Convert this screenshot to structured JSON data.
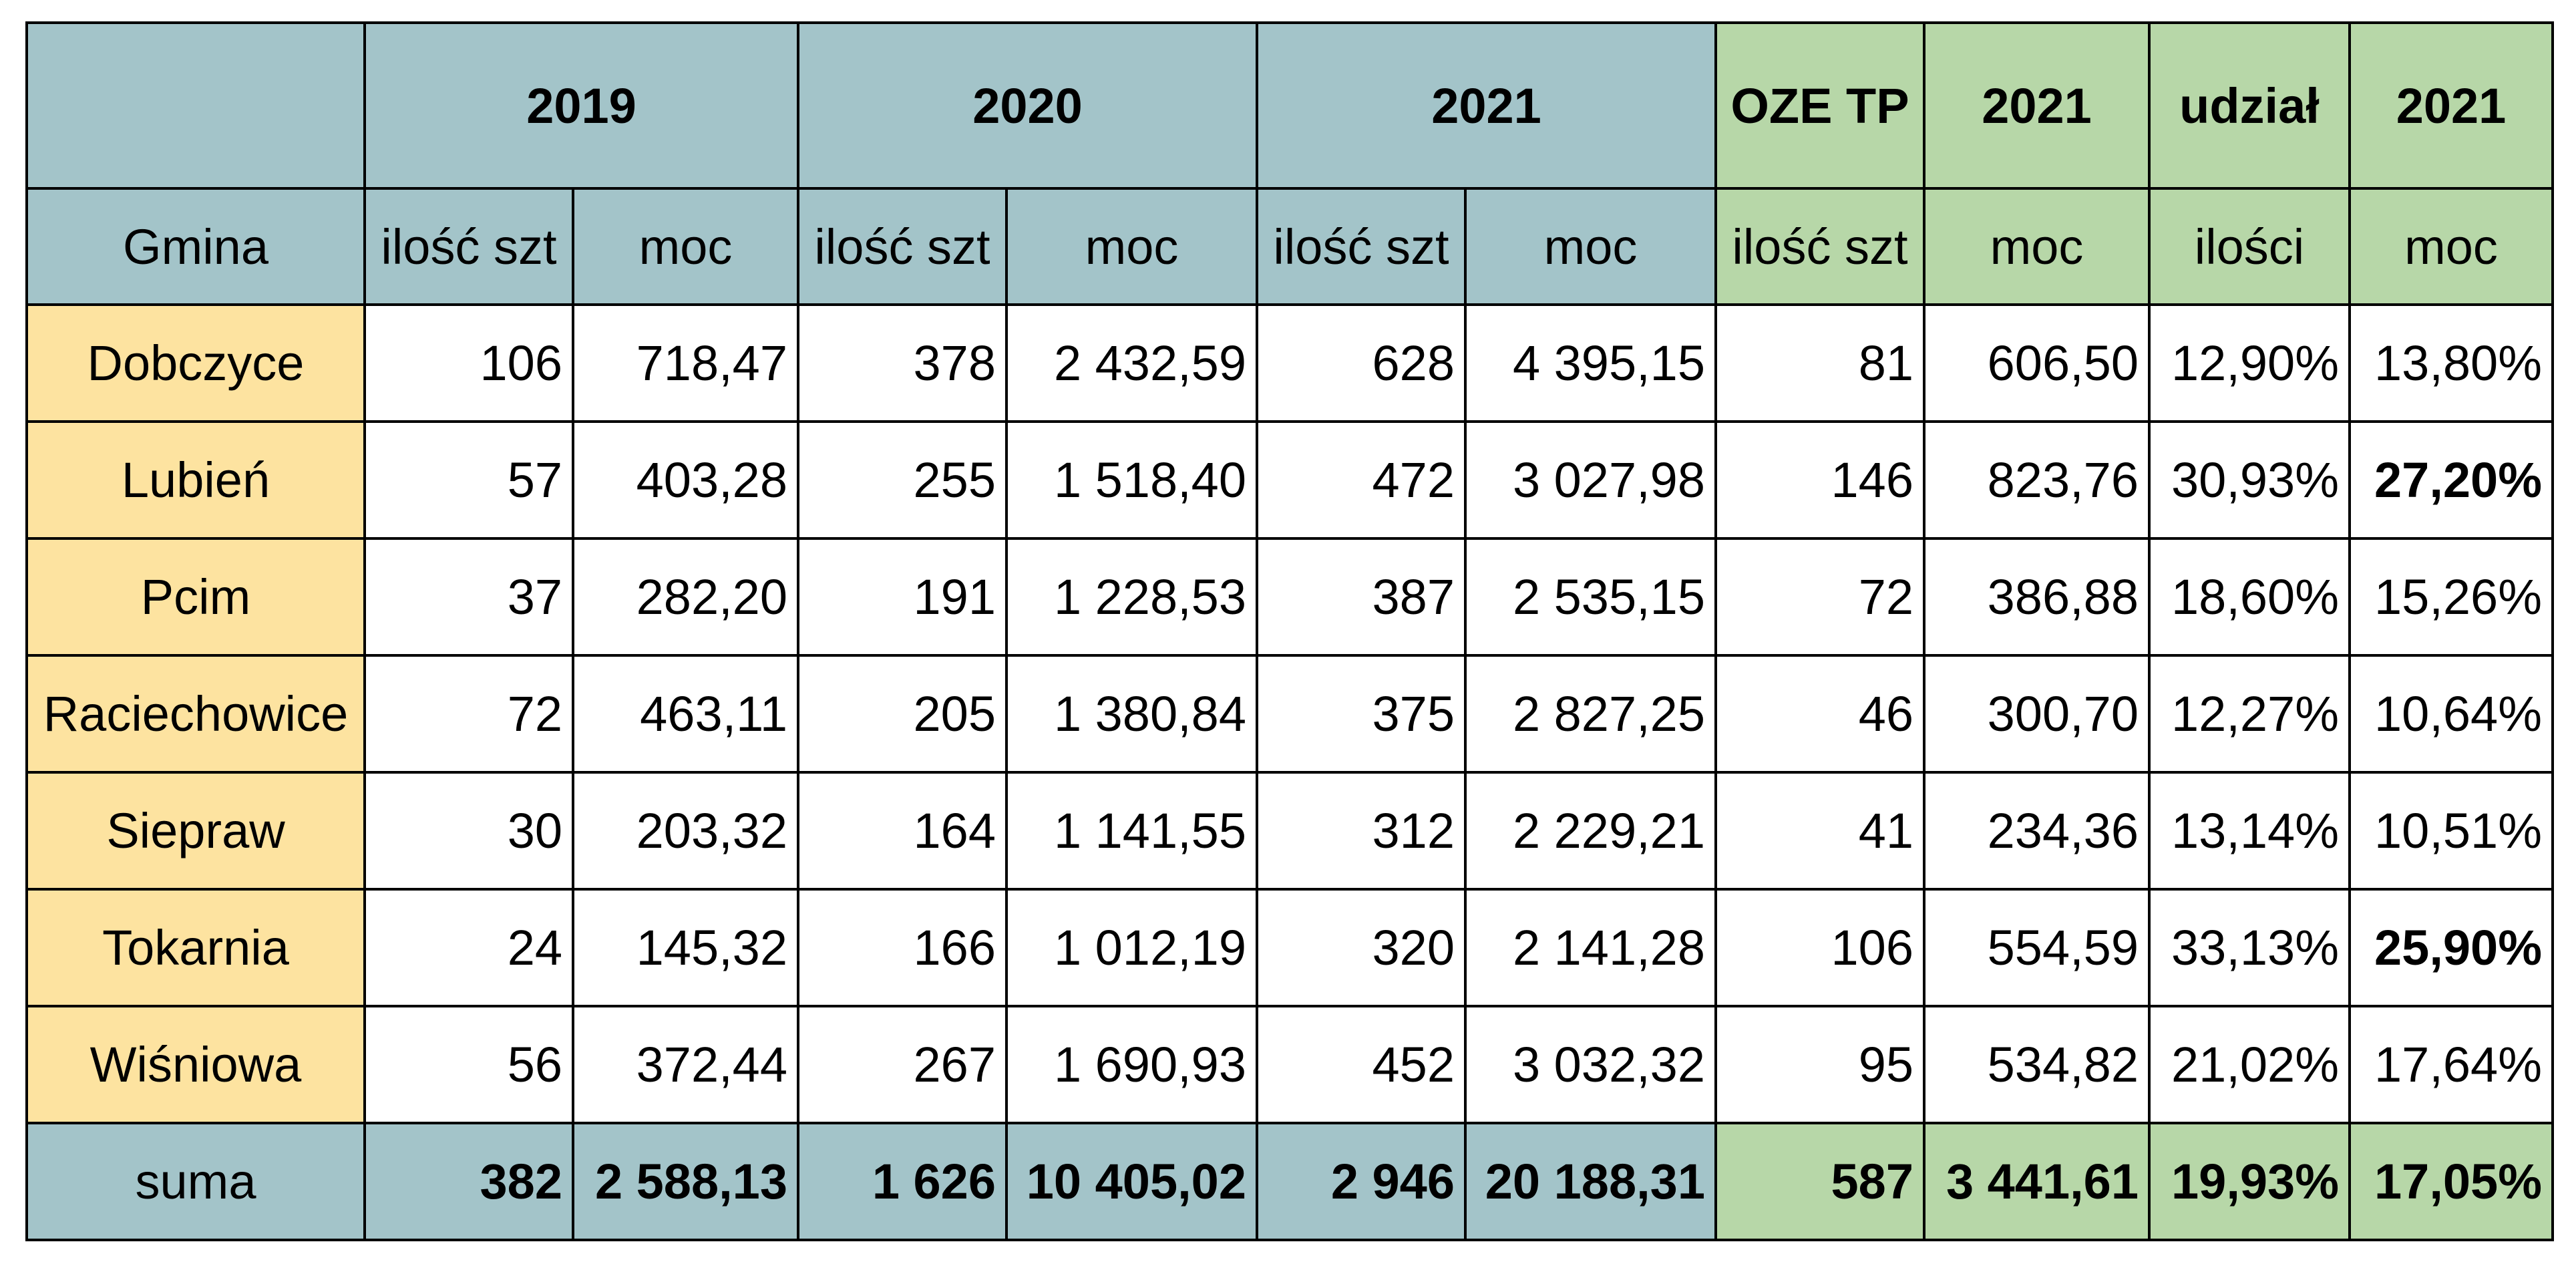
{
  "header1": [
    "",
    "2019",
    "2020",
    "2021",
    "OZE TP",
    "2021",
    "udział",
    "2021"
  ],
  "header2": [
    "Gmina",
    "ilość szt",
    "moc",
    "ilość szt",
    "moc",
    "ilość szt",
    "moc",
    "ilość szt",
    "moc",
    "ilości",
    "moc"
  ],
  "rows": [
    {
      "gmina": "Dobczyce",
      "c": [
        "106",
        "718,47",
        "378",
        "2 432,59",
        "628",
        "4 395,15",
        "81",
        "606,50",
        "12,90%",
        "13,80%"
      ],
      "bold_last": false
    },
    {
      "gmina": "Lubień",
      "c": [
        "57",
        "403,28",
        "255",
        "1 518,40",
        "472",
        "3 027,98",
        "146",
        "823,76",
        "30,93%",
        "27,20%"
      ],
      "bold_last": true
    },
    {
      "gmina": "Pcim",
      "c": [
        "37",
        "282,20",
        "191",
        "1 228,53",
        "387",
        "2 535,15",
        "72",
        "386,88",
        "18,60%",
        "15,26%"
      ],
      "bold_last": false
    },
    {
      "gmina": "Raciechowice",
      "c": [
        "72",
        "463,11",
        "205",
        "1 380,84",
        "375",
        "2 827,25",
        "46",
        "300,70",
        "12,27%",
        "10,64%"
      ],
      "bold_last": false
    },
    {
      "gmina": "Siepraw",
      "c": [
        "30",
        "203,32",
        "164",
        "1 141,55",
        "312",
        "2 229,21",
        "41",
        "234,36",
        "13,14%",
        "10,51%"
      ],
      "bold_last": false
    },
    {
      "gmina": "Tokarnia",
      "c": [
        "24",
        "145,32",
        "166",
        "1 012,19",
        "320",
        "2 141,28",
        "106",
        "554,59",
        "33,13%",
        "25,90%"
      ],
      "bold_last": true
    },
    {
      "gmina": "Wiśniowa",
      "c": [
        "56",
        "372,44",
        "267",
        "1 690,93",
        "452",
        "3 032,32",
        "95",
        "534,82",
        "21,02%",
        "17,64%"
      ],
      "bold_last": false
    }
  ],
  "sum": {
    "label": "suma",
    "c": [
      "382",
      "2 588,13",
      "1 626",
      "10 405,02",
      "2 946",
      "20 188,31",
      "587",
      "3 441,61",
      "19,93%",
      "17,05%"
    ]
  },
  "colors": {
    "blue": "#a3c4c9",
    "green": "#b7d7a8",
    "yellow": "#fde3a0"
  }
}
